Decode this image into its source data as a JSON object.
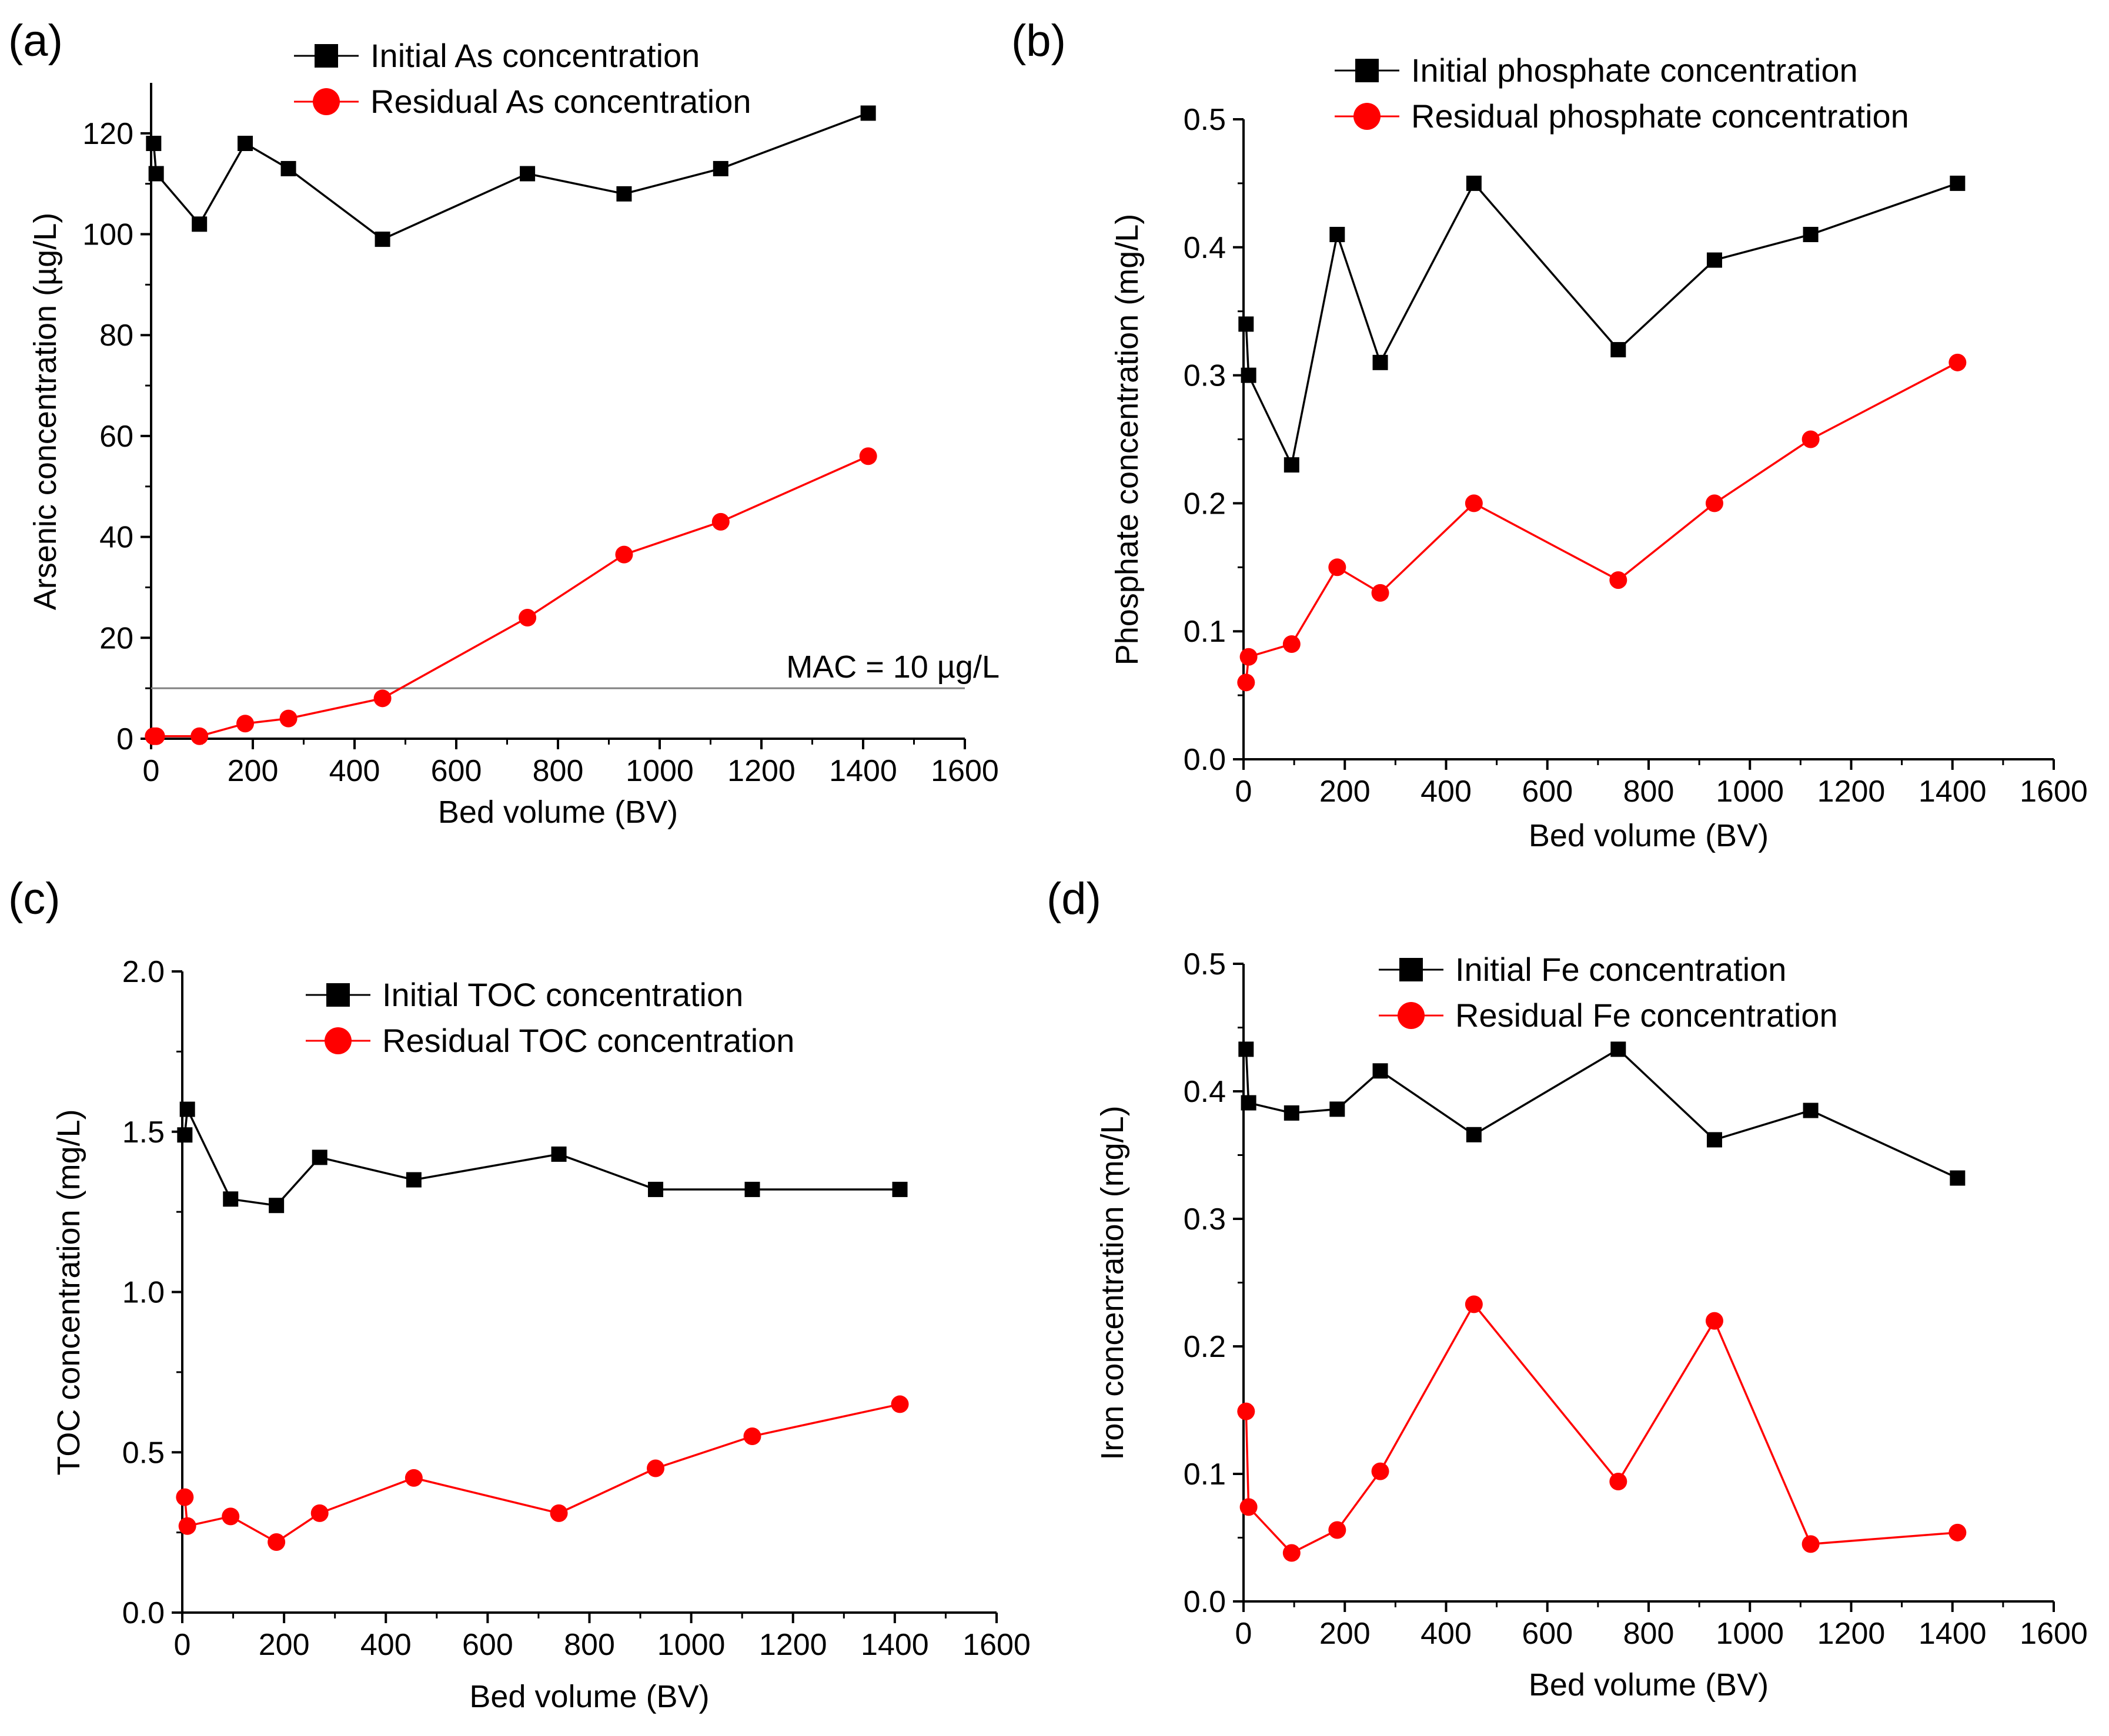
{
  "chart_data": [
    {
      "type": "line",
      "panel_label": "(a)",
      "title": "",
      "xlabel": "Bed volume (BV)",
      "ylabel": "Arsenic concentration (µg/L)",
      "xlim": [
        0,
        1600
      ],
      "ylim": [
        0,
        130
      ],
      "xticks": [
        0,
        200,
        400,
        600,
        800,
        1000,
        1200,
        1400,
        1600
      ],
      "xtick_labels": [
        "0",
        "200",
        "400",
        "600",
        "800",
        "1000",
        "1200",
        "1400",
        "1600"
      ],
      "yticks": [
        0,
        20,
        40,
        60,
        80,
        100,
        120
      ],
      "ytick_labels": [
        "0",
        "20",
        "40",
        "60",
        "80",
        "100",
        "120"
      ],
      "grid": false,
      "legend_position": "top-center",
      "series": [
        {
          "name": "Initial As concentration",
          "color": "#000000",
          "marker": "square",
          "x": [
            5,
            10,
            95,
            185,
            270,
            455,
            740,
            930,
            1120,
            1410
          ],
          "values": [
            118,
            112,
            102,
            118,
            113,
            99,
            112,
            108,
            113,
            124
          ]
        },
        {
          "name": "Residual As concentration",
          "color": "#ff0000",
          "marker": "circle",
          "x": [
            5,
            10,
            95,
            185,
            270,
            455,
            740,
            930,
            1120,
            1410
          ],
          "values": [
            0.5,
            0.5,
            0.5,
            3,
            4,
            8,
            24,
            36.5,
            43,
            56
          ]
        }
      ],
      "reference_line": {
        "y": 10,
        "color": "#808080",
        "label": "MAC = 10 µg/L"
      }
    },
    {
      "type": "line",
      "panel_label": "(b)",
      "title": "",
      "xlabel": "Bed volume (BV)",
      "ylabel": "Phosphate concentration (mg/L)",
      "xlim": [
        0,
        1600
      ],
      "ylim": [
        0,
        0.5
      ],
      "xticks": [
        0,
        200,
        400,
        600,
        800,
        1000,
        1200,
        1400,
        1600
      ],
      "xtick_labels": [
        "0",
        "200",
        "400",
        "600",
        "800",
        "1000",
        "1200",
        "1400",
        "1600"
      ],
      "yticks": [
        0,
        0.1,
        0.2,
        0.3,
        0.4,
        0.5
      ],
      "ytick_labels": [
        "0.0",
        "0.1",
        "0.2",
        "0.3",
        "0.4",
        "0.5"
      ],
      "grid": false,
      "legend_position": "top-center",
      "series": [
        {
          "name": "Initial phosphate concentration",
          "color": "#000000",
          "marker": "square",
          "x": [
            5,
            10,
            95,
            185,
            270,
            455,
            740,
            930,
            1120,
            1410
          ],
          "values": [
            0.34,
            0.3,
            0.23,
            0.41,
            0.31,
            0.45,
            0.32,
            0.39,
            0.41,
            0.45
          ]
        },
        {
          "name": "Residual phosphate concentration",
          "color": "#ff0000",
          "marker": "circle",
          "x": [
            5,
            10,
            95,
            185,
            270,
            455,
            740,
            930,
            1120,
            1410
          ],
          "values": [
            0.06,
            0.08,
            0.09,
            0.15,
            0.13,
            0.2,
            0.14,
            0.2,
            0.25,
            0.31
          ]
        }
      ]
    },
    {
      "type": "line",
      "panel_label": "(c)",
      "title": "",
      "xlabel": "Bed volume (BV)",
      "ylabel": "TOC concentration (mg/L)",
      "xlim": [
        0,
        1600
      ],
      "ylim": [
        0,
        2.0
      ],
      "xticks": [
        0,
        200,
        400,
        600,
        800,
        1000,
        1200,
        1400,
        1600
      ],
      "xtick_labels": [
        "0",
        "200",
        "400",
        "600",
        "800",
        "1000",
        "1200",
        "1400",
        "1600"
      ],
      "yticks": [
        0,
        0.5,
        1.0,
        1.5,
        2.0
      ],
      "ytick_labels": [
        "0.0",
        "0.5",
        "1.0",
        "1.5",
        "2.0"
      ],
      "grid": false,
      "legend_position": "top-center",
      "series": [
        {
          "name": "Initial TOC concentration",
          "color": "#000000",
          "marker": "square",
          "x": [
            5,
            10,
            95,
            185,
            270,
            455,
            740,
            930,
            1120,
            1410
          ],
          "values": [
            1.49,
            1.57,
            1.29,
            1.27,
            1.42,
            1.35,
            1.43,
            1.32,
            1.32,
            1.32
          ]
        },
        {
          "name": "Residual TOC concentration",
          "color": "#ff0000",
          "marker": "circle",
          "x": [
            5,
            10,
            95,
            185,
            270,
            455,
            740,
            930,
            1120,
            1410
          ],
          "values": [
            0.36,
            0.27,
            0.3,
            0.22,
            0.31,
            0.42,
            0.31,
            0.45,
            0.55,
            0.65
          ]
        }
      ]
    },
    {
      "type": "line",
      "panel_label": "(d)",
      "title": "",
      "xlabel": "Bed volume (BV)",
      "ylabel": "Iron concentration (mg/L)",
      "xlim": [
        0,
        1600
      ],
      "ylim": [
        0,
        0.5
      ],
      "xticks": [
        0,
        200,
        400,
        600,
        800,
        1000,
        1200,
        1400,
        1600
      ],
      "xtick_labels": [
        "0",
        "200",
        "400",
        "600",
        "800",
        "1000",
        "1200",
        "1400",
        "1600"
      ],
      "yticks": [
        0,
        0.1,
        0.2,
        0.3,
        0.4,
        0.5
      ],
      "ytick_labels": [
        "0.0",
        "0.1",
        "0.2",
        "0.3",
        "0.4",
        "0.5"
      ],
      "grid": false,
      "legend_position": "top-center",
      "series": [
        {
          "name": "Initial Fe concentration",
          "color": "#000000",
          "marker": "square",
          "x": [
            5,
            10,
            95,
            185,
            270,
            455,
            740,
            930,
            1120,
            1410
          ],
          "values": [
            0.433,
            0.391,
            0.383,
            0.386,
            0.416,
            0.366,
            0.433,
            0.362,
            0.385,
            0.332
          ]
        },
        {
          "name": "Residual Fe concentration",
          "color": "#ff0000",
          "marker": "circle",
          "x": [
            5,
            10,
            95,
            185,
            270,
            455,
            740,
            930,
            1120,
            1410
          ],
          "values": [
            0.149,
            0.074,
            0.038,
            0.056,
            0.102,
            0.233,
            0.094,
            0.22,
            0.045,
            0.054
          ]
        }
      ]
    }
  ]
}
